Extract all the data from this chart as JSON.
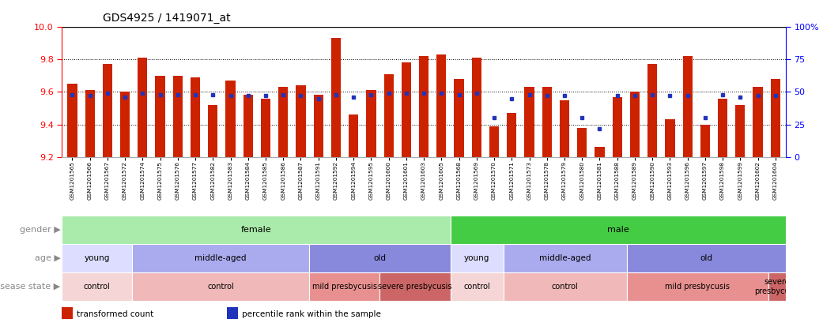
{
  "title": "GDS4925 / 1419071_at",
  "samples": [
    "GSM1201565",
    "GSM1201566",
    "GSM1201567",
    "GSM1201572",
    "GSM1201574",
    "GSM1201575",
    "GSM1201576",
    "GSM1201577",
    "GSM1201582",
    "GSM1201583",
    "GSM1201584",
    "GSM1201585",
    "GSM1201586",
    "GSM1201587",
    "GSM1201591",
    "GSM1201592",
    "GSM1201594",
    "GSM1201595",
    "GSM1201600",
    "GSM1201601",
    "GSM1201603",
    "GSM1201605",
    "GSM1201568",
    "GSM1201569",
    "GSM1201570",
    "GSM1201571",
    "GSM1201573",
    "GSM1201578",
    "GSM1201579",
    "GSM1201580",
    "GSM1201581",
    "GSM1201588",
    "GSM1201589",
    "GSM1201590",
    "GSM1201593",
    "GSM1201596",
    "GSM1201597",
    "GSM1201598",
    "GSM1201599",
    "GSM1201602",
    "GSM1201604"
  ],
  "bar_values": [
    9.65,
    9.61,
    9.77,
    9.6,
    9.81,
    9.7,
    9.7,
    9.69,
    9.52,
    9.67,
    9.58,
    9.56,
    9.63,
    9.64,
    9.58,
    9.93,
    9.46,
    9.61,
    9.71,
    9.78,
    9.82,
    9.83,
    9.68,
    9.81,
    9.39,
    9.47,
    9.63,
    9.63,
    9.55,
    9.38,
    9.26,
    9.57,
    9.6,
    9.77,
    9.43,
    9.82,
    9.4,
    9.56,
    9.52,
    9.63,
    9.68
  ],
  "percentile_values": [
    48,
    47,
    49,
    46,
    49,
    48,
    48,
    48,
    48,
    47,
    47,
    47,
    48,
    47,
    45,
    48,
    46,
    48,
    49,
    49,
    49,
    49,
    48,
    49,
    30,
    45,
    48,
    47,
    47,
    30,
    22,
    47,
    47,
    48,
    47,
    47,
    30,
    48,
    46,
    47,
    47
  ],
  "ymin": 9.2,
  "ymax": 10.0,
  "bar_color": "#cc2200",
  "dot_color": "#2233bb",
  "gender_groups": [
    {
      "label": "female",
      "start": 0,
      "end": 22,
      "color": "#aaeaaa"
    },
    {
      "label": "male",
      "start": 22,
      "end": 41,
      "color": "#44cc44"
    }
  ],
  "age_groups": [
    {
      "label": "young",
      "start": 0,
      "end": 4,
      "color": "#ddddff"
    },
    {
      "label": "middle-aged",
      "start": 4,
      "end": 14,
      "color": "#aaaaee"
    },
    {
      "label": "old",
      "start": 14,
      "end": 22,
      "color": "#8888dd"
    },
    {
      "label": "young",
      "start": 22,
      "end": 25,
      "color": "#ddddff"
    },
    {
      "label": "middle-aged",
      "start": 25,
      "end": 32,
      "color": "#aaaaee"
    },
    {
      "label": "old",
      "start": 32,
      "end": 41,
      "color": "#8888dd"
    }
  ],
  "disease_groups": [
    {
      "label": "control",
      "start": 0,
      "end": 4,
      "color": "#f5d5d5"
    },
    {
      "label": "control",
      "start": 4,
      "end": 14,
      "color": "#f0b8b8"
    },
    {
      "label": "mild presbycusis",
      "start": 14,
      "end": 18,
      "color": "#e89090"
    },
    {
      "label": "severe presbycusis",
      "start": 18,
      "end": 22,
      "color": "#cc6666"
    },
    {
      "label": "control",
      "start": 22,
      "end": 25,
      "color": "#f5d5d5"
    },
    {
      "label": "control",
      "start": 25,
      "end": 32,
      "color": "#f0b8b8"
    },
    {
      "label": "mild presbycusis",
      "start": 32,
      "end": 40,
      "color": "#e89090"
    },
    {
      "label": "severe\npresbycusis",
      "start": 40,
      "end": 41,
      "color": "#cc6666"
    }
  ],
  "row_labels": [
    "gender",
    "age",
    "disease state"
  ],
  "legend_items": [
    {
      "label": "transformed count",
      "color": "#cc2200",
      "marker": "s"
    },
    {
      "label": "percentile rank within the sample",
      "color": "#2233bb",
      "marker": "s"
    }
  ],
  "left_yticks": [
    9.2,
    9.4,
    9.6,
    9.8,
    10.0
  ],
  "right_yticks": [
    0,
    25,
    50,
    75,
    100
  ],
  "right_yticklabels": [
    "0",
    "25",
    "50",
    "75",
    "100%"
  ],
  "gridlines": [
    9.4,
    9.6,
    9.8
  ]
}
